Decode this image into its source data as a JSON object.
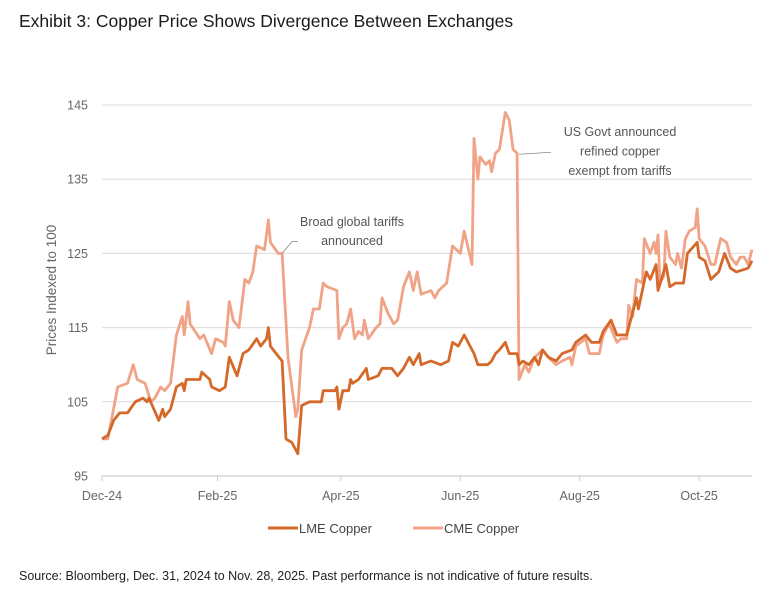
{
  "title": "Exhibit 3: Copper Price Shows Divergence Between Exchanges",
  "source": "Source: Bloomberg, Dec. 31, 2024 to Nov. 28, 2025. Past performance is not indicative of future results.",
  "chart_data": {
    "type": "line",
    "title": "Exhibit 3: Copper Price Shows Divergence Between Exchanges",
    "xlabel": "",
    "ylabel": "Prices Indexed to 100",
    "xlim": [
      "2024-12-31",
      "2025-11-28"
    ],
    "ylim": [
      95,
      145
    ],
    "yticks": [
      95,
      105,
      115,
      125,
      135,
      145
    ],
    "xticks": [
      {
        "label": "Dec-24",
        "date": "2024-12-31"
      },
      {
        "label": "Feb-25",
        "date": "2025-02-28"
      },
      {
        "label": "Apr-25",
        "date": "2025-05-02"
      },
      {
        "label": "Jun-25",
        "date": "2025-07-02"
      },
      {
        "label": "Aug-25",
        "date": "2025-09-01"
      },
      {
        "label": "Oct-25",
        "date": "2025-11-01"
      }
    ],
    "grid": "horizontal",
    "legend_position": "bottom",
    "annotations": [
      {
        "lines": [
          "Broad global tariffs",
          "announced"
        ],
        "date": "2025-04-02",
        "value": 125
      },
      {
        "lines": [
          "US Govt announced",
          "refined copper",
          "exempt from tariffs"
        ],
        "date": "2025-07-31",
        "value": 138.5
      }
    ],
    "series": [
      {
        "name": "LME Copper",
        "color": "#d4692a",
        "points": [
          [
            "2024-12-31",
            100
          ],
          [
            "2025-01-03",
            100.5
          ],
          [
            "2025-01-06",
            102.5
          ],
          [
            "2025-01-09",
            103.5
          ],
          [
            "2025-01-13",
            103.5
          ],
          [
            "2025-01-17",
            105
          ],
          [
            "2025-01-21",
            105.5
          ],
          [
            "2025-01-23",
            105
          ],
          [
            "2025-01-24",
            105.5
          ],
          [
            "2025-01-29",
            102.5
          ],
          [
            "2025-01-31",
            104
          ],
          [
            "2025-02-01",
            103
          ],
          [
            "2025-02-04",
            104
          ],
          [
            "2025-02-07",
            107
          ],
          [
            "2025-02-10",
            107.5
          ],
          [
            "2025-02-11",
            106.5
          ],
          [
            "2025-02-12",
            108
          ],
          [
            "2025-02-19",
            108
          ],
          [
            "2025-02-20",
            109
          ],
          [
            "2025-02-24",
            108
          ],
          [
            "2025-02-25",
            107
          ],
          [
            "2025-03-01",
            106.5
          ],
          [
            "2025-03-04",
            107
          ],
          [
            "2025-03-06",
            111
          ],
          [
            "2025-03-10",
            108.5
          ],
          [
            "2025-03-13",
            111.5
          ],
          [
            "2025-03-16",
            112
          ],
          [
            "2025-03-20",
            113.5
          ],
          [
            "2025-03-22",
            112.5
          ],
          [
            "2025-03-25",
            113.5
          ],
          [
            "2025-03-26",
            115
          ],
          [
            "2025-03-27",
            112.5
          ],
          [
            "2025-03-30",
            111.5
          ],
          [
            "2025-04-02",
            110.5
          ],
          [
            "2025-04-04",
            100
          ],
          [
            "2025-04-07",
            99.5
          ],
          [
            "2025-04-10",
            98
          ],
          [
            "2025-04-12",
            104.5
          ],
          [
            "2025-04-16",
            105
          ],
          [
            "2025-04-22",
            105
          ],
          [
            "2025-04-23",
            106.5
          ],
          [
            "2025-04-29",
            106.5
          ],
          [
            "2025-04-30",
            107
          ],
          [
            "2025-05-01",
            104
          ],
          [
            "2025-05-03",
            106.5
          ],
          [
            "2025-05-06",
            106.5
          ],
          [
            "2025-05-07",
            108
          ],
          [
            "2025-05-08",
            107.5
          ],
          [
            "2025-05-11",
            108
          ],
          [
            "2025-05-15",
            109.5
          ],
          [
            "2025-05-16",
            108
          ],
          [
            "2025-05-21",
            108.5
          ],
          [
            "2025-05-23",
            109.5
          ],
          [
            "2025-05-28",
            109.5
          ],
          [
            "2025-05-31",
            108.5
          ],
          [
            "2025-06-03",
            109.5
          ],
          [
            "2025-06-05",
            110.5
          ],
          [
            "2025-06-06",
            111
          ],
          [
            "2025-06-08",
            110
          ],
          [
            "2025-06-11",
            111.5
          ],
          [
            "2025-06-12",
            110
          ],
          [
            "2025-06-17",
            110.5
          ],
          [
            "2025-06-22",
            110
          ],
          [
            "2025-06-26",
            110.5
          ],
          [
            "2025-06-28",
            113
          ],
          [
            "2025-07-01",
            112.5
          ],
          [
            "2025-07-04",
            114
          ],
          [
            "2025-07-09",
            111.5
          ],
          [
            "2025-07-11",
            110
          ],
          [
            "2025-07-16",
            110
          ],
          [
            "2025-07-18",
            110.5
          ],
          [
            "2025-07-20",
            111.5
          ],
          [
            "2025-07-22",
            112
          ],
          [
            "2025-07-25",
            113
          ],
          [
            "2025-07-27",
            111.5
          ],
          [
            "2025-07-31",
            111.5
          ],
          [
            "2025-08-01",
            110
          ],
          [
            "2025-08-03",
            110.5
          ],
          [
            "2025-08-06",
            110
          ],
          [
            "2025-08-09",
            111
          ],
          [
            "2025-08-11",
            110
          ],
          [
            "2025-08-13",
            112
          ],
          [
            "2025-08-16",
            111
          ],
          [
            "2025-08-20",
            110.5
          ],
          [
            "2025-08-23",
            111.5
          ],
          [
            "2025-08-28",
            112
          ],
          [
            "2025-08-30",
            113
          ],
          [
            "2025-09-04",
            114
          ],
          [
            "2025-09-07",
            113
          ],
          [
            "2025-09-11",
            113
          ],
          [
            "2025-09-13",
            114.5
          ],
          [
            "2025-09-17",
            116
          ],
          [
            "2025-09-20",
            114
          ],
          [
            "2025-09-25",
            114
          ],
          [
            "2025-09-27",
            116
          ],
          [
            "2025-09-30",
            119
          ],
          [
            "2025-10-01",
            117.5
          ],
          [
            "2025-10-05",
            122.5
          ],
          [
            "2025-10-07",
            121.5
          ],
          [
            "2025-10-10",
            123.5
          ],
          [
            "2025-10-11",
            120
          ],
          [
            "2025-10-15",
            123.5
          ],
          [
            "2025-10-17",
            120.5
          ],
          [
            "2025-10-20",
            121
          ],
          [
            "2025-10-22",
            121
          ],
          [
            "2025-10-24",
            121
          ],
          [
            "2025-10-26",
            125
          ],
          [
            "2025-10-31",
            126.5
          ],
          [
            "2025-11-01",
            124.5
          ],
          [
            "2025-11-04",
            124
          ],
          [
            "2025-11-07",
            121.5
          ],
          [
            "2025-11-11",
            122.5
          ],
          [
            "2025-11-14",
            125
          ],
          [
            "2025-11-17",
            123
          ],
          [
            "2025-11-20",
            122.5
          ],
          [
            "2025-11-26",
            123
          ],
          [
            "2025-11-28",
            124
          ]
        ]
      },
      {
        "name": "CME Copper",
        "color": "#f0a386",
        "points": [
          [
            "2024-12-31",
            100
          ],
          [
            "2025-01-03",
            100
          ],
          [
            "2025-01-08",
            107
          ],
          [
            "2025-01-13",
            107.5
          ],
          [
            "2025-01-16",
            110
          ],
          [
            "2025-01-18",
            108
          ],
          [
            "2025-01-22",
            107.5
          ],
          [
            "2025-01-25",
            105
          ],
          [
            "2025-01-27",
            105.5
          ],
          [
            "2025-01-30",
            107
          ],
          [
            "2025-02-01",
            106.5
          ],
          [
            "2025-02-04",
            107.5
          ],
          [
            "2025-02-07",
            114
          ],
          [
            "2025-02-10",
            116.5
          ],
          [
            "2025-02-11",
            114
          ],
          [
            "2025-02-13",
            118.5
          ],
          [
            "2025-02-14",
            115.5
          ],
          [
            "2025-02-19",
            113.5
          ],
          [
            "2025-02-21",
            114
          ],
          [
            "2025-02-25",
            111.5
          ],
          [
            "2025-02-27",
            113.5
          ],
          [
            "2025-03-03",
            113
          ],
          [
            "2025-03-04",
            112.5
          ],
          [
            "2025-03-06",
            118.5
          ],
          [
            "2025-03-08",
            116
          ],
          [
            "2025-03-11",
            115
          ],
          [
            "2025-03-14",
            121.5
          ],
          [
            "2025-03-16",
            121
          ],
          [
            "2025-03-18",
            122.5
          ],
          [
            "2025-03-20",
            126
          ],
          [
            "2025-03-24",
            125.5
          ],
          [
            "2025-03-26",
            129.5
          ],
          [
            "2025-03-27",
            126.5
          ],
          [
            "2025-03-31",
            125
          ],
          [
            "2025-04-02",
            125
          ],
          [
            "2025-04-05",
            111
          ],
          [
            "2025-04-09",
            103
          ],
          [
            "2025-04-10",
            104
          ],
          [
            "2025-04-12",
            112
          ],
          [
            "2025-04-16",
            115
          ],
          [
            "2025-04-18",
            117.5
          ],
          [
            "2025-04-21",
            117.5
          ],
          [
            "2025-04-23",
            121
          ],
          [
            "2025-04-25",
            120.5
          ],
          [
            "2025-04-30",
            120
          ],
          [
            "2025-05-01",
            113.5
          ],
          [
            "2025-05-03",
            115
          ],
          [
            "2025-05-05",
            115.5
          ],
          [
            "2025-05-07",
            117.5
          ],
          [
            "2025-05-09",
            113.5
          ],
          [
            "2025-05-11",
            114.5
          ],
          [
            "2025-05-13",
            114
          ],
          [
            "2025-05-14",
            116
          ],
          [
            "2025-05-16",
            113.5
          ],
          [
            "2025-05-20",
            115
          ],
          [
            "2025-05-22",
            115.5
          ],
          [
            "2025-05-23",
            119
          ],
          [
            "2025-05-26",
            117
          ],
          [
            "2025-05-29",
            115.5
          ],
          [
            "2025-05-31",
            116
          ],
          [
            "2025-06-03",
            120.5
          ],
          [
            "2025-06-06",
            122.5
          ],
          [
            "2025-06-08",
            120
          ],
          [
            "2025-06-10",
            122.5
          ],
          [
            "2025-06-12",
            119.5
          ],
          [
            "2025-06-17",
            120
          ],
          [
            "2025-06-19",
            119
          ],
          [
            "2025-06-21",
            120
          ],
          [
            "2025-06-25",
            121
          ],
          [
            "2025-06-28",
            126
          ],
          [
            "2025-07-02",
            125
          ],
          [
            "2025-07-04",
            128
          ],
          [
            "2025-07-08",
            123.5
          ],
          [
            "2025-07-09",
            140.5
          ],
          [
            "2025-07-11",
            135
          ],
          [
            "2025-07-12",
            138
          ],
          [
            "2025-07-15",
            137
          ],
          [
            "2025-07-17",
            137.5
          ],
          [
            "2025-07-18",
            136
          ],
          [
            "2025-07-20",
            138.5
          ],
          [
            "2025-07-22",
            139
          ],
          [
            "2025-07-25",
            144
          ],
          [
            "2025-07-27",
            143
          ],
          [
            "2025-07-29",
            139
          ],
          [
            "2025-07-31",
            138.5
          ],
          [
            "2025-08-01",
            108
          ],
          [
            "2025-08-04",
            110
          ],
          [
            "2025-08-06",
            109
          ],
          [
            "2025-08-09",
            111
          ],
          [
            "2025-08-13",
            112
          ],
          [
            "2025-08-16",
            111
          ],
          [
            "2025-08-20",
            110
          ],
          [
            "2025-08-23",
            110.5
          ],
          [
            "2025-08-27",
            111
          ],
          [
            "2025-08-28",
            110
          ],
          [
            "2025-08-30",
            112.5
          ],
          [
            "2025-09-04",
            113.5
          ],
          [
            "2025-09-06",
            111.5
          ],
          [
            "2025-09-11",
            111.5
          ],
          [
            "2025-09-13",
            114
          ],
          [
            "2025-09-16",
            115.5
          ],
          [
            "2025-09-20",
            113
          ],
          [
            "2025-09-22",
            113.5
          ],
          [
            "2025-09-25",
            113.5
          ],
          [
            "2025-09-26",
            118
          ],
          [
            "2025-09-28",
            116.5
          ],
          [
            "2025-09-30",
            121.5
          ],
          [
            "2025-10-03",
            121
          ],
          [
            "2025-10-04",
            127
          ],
          [
            "2025-10-07",
            125
          ],
          [
            "2025-10-09",
            126.5
          ],
          [
            "2025-10-10",
            125
          ],
          [
            "2025-10-11",
            127.5
          ],
          [
            "2025-10-12",
            121
          ],
          [
            "2025-10-14",
            122
          ],
          [
            "2025-10-15",
            128
          ],
          [
            "2025-10-17",
            124.5
          ],
          [
            "2025-10-20",
            123.5
          ],
          [
            "2025-10-21",
            125
          ],
          [
            "2025-10-23",
            123
          ],
          [
            "2025-10-25",
            127
          ],
          [
            "2025-10-27",
            128
          ],
          [
            "2025-10-30",
            128.5
          ],
          [
            "2025-10-31",
            131
          ],
          [
            "2025-11-01",
            127
          ],
          [
            "2025-11-04",
            126
          ],
          [
            "2025-11-07",
            123.5
          ],
          [
            "2025-11-09",
            123.5
          ],
          [
            "2025-11-12",
            127
          ],
          [
            "2025-11-15",
            126.5
          ],
          [
            "2025-11-17",
            124.5
          ],
          [
            "2025-11-20",
            123.5
          ],
          [
            "2025-11-22",
            124.5
          ],
          [
            "2025-11-24",
            124.5
          ],
          [
            "2025-11-26",
            123.5
          ],
          [
            "2025-11-28",
            125.5
          ]
        ]
      }
    ]
  }
}
